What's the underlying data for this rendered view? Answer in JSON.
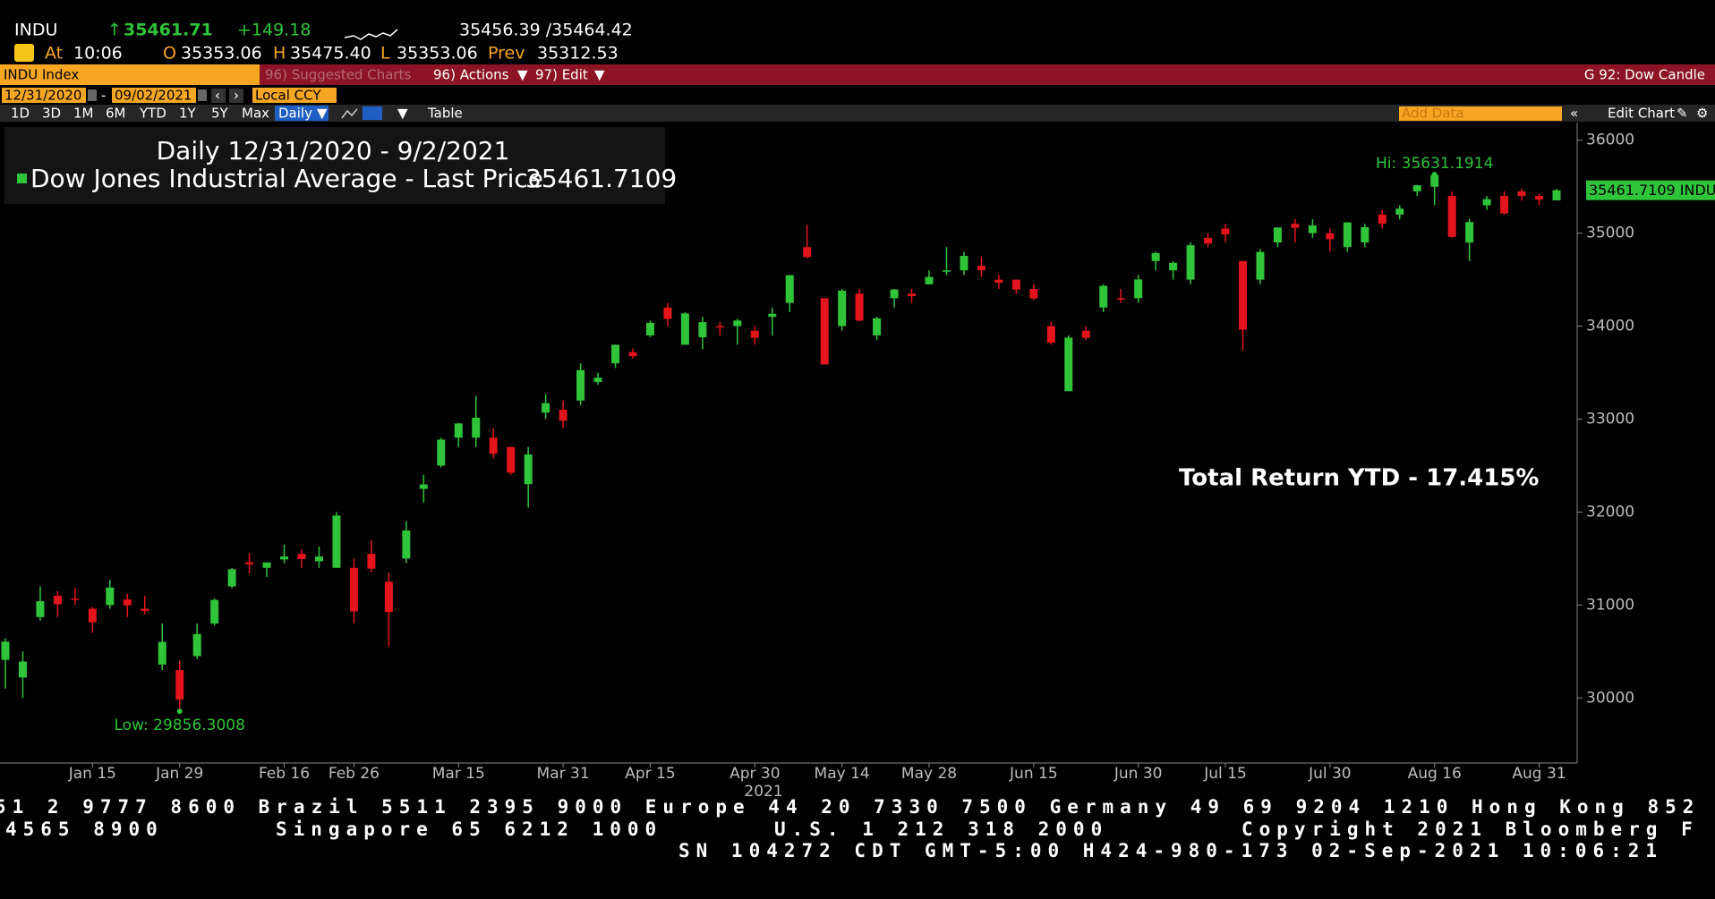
{
  "header": {
    "ticker": "INDU",
    "last": "35461.71",
    "change": "+149.18",
    "bid_ask": "35456.39 /35464.42",
    "at_label": "At",
    "time": "10:06",
    "open_label": "O",
    "open": "35353.06",
    "high_label": "H",
    "high": "35475.40",
    "low_label": "L",
    "low": "35353.06",
    "prev_label": "Prev",
    "prev": "35312.53"
  },
  "toolbar": {
    "security": "INDU Index",
    "suggested": "96) Suggested Charts",
    "actions": "96) Actions",
    "edit": "97) Edit",
    "function": "G 92: Dow Candle",
    "start_date": "12/31/2020",
    "end_date": "09/02/2021",
    "currency": "Local CCY",
    "ranges": [
      "1D",
      "3D",
      "1M",
      "6M",
      "YTD",
      "1Y",
      "5Y",
      "Max"
    ],
    "period": "Daily",
    "table": "Table",
    "add_data": "Add Data",
    "edit_chart": "Edit Chart"
  },
  "chart_data": {
    "type": "candlestick",
    "up_color": "#2fc43a",
    "down_color": "#e3141c",
    "legend": {
      "title": "Daily 12/31/2020 - 9/2/2021",
      "series_name": "Dow Jones Industrial Average - Last Price",
      "last_value": 35461.7109
    },
    "high_label": "Hi: 35631.1914",
    "low_label": "Low: 29856.3008",
    "annotation": "Total Return YTD - 17.415%",
    "last_price_label": "35461.7109 INDU",
    "year_label": "2021",
    "ylim": [
      29300,
      36190
    ],
    "yticks": [
      30000,
      31000,
      32000,
      33000,
      34000,
      35000,
      36000
    ],
    "xticks": [
      "Jan 15",
      "Jan 29",
      "Feb 16",
      "Feb 26",
      "Mar 15",
      "Mar 31",
      "Apr 15",
      "Apr 30",
      "May 14",
      "May 28",
      "Jun 15",
      "Jun 30",
      "Jul 15",
      "Jul 30",
      "Aug 16",
      "Aug 31"
    ],
    "candles": [
      {
        "date": "Dec 31",
        "open": 30410,
        "high": 30640,
        "low": 30100,
        "close": 30606
      },
      {
        "date": "Jan 5",
        "open": 30220,
        "high": 30500,
        "low": 30000,
        "close": 30392
      },
      {
        "date": "Jan 7",
        "open": 30870,
        "high": 31200,
        "low": 30830,
        "close": 31041
      },
      {
        "date": "Jan 11",
        "open": 31100,
        "high": 31150,
        "low": 30870,
        "close": 31008
      },
      {
        "date": "Jan 13",
        "open": 31070,
        "high": 31180,
        "low": 31000,
        "close": 31060
      },
      {
        "date": "Jan 15",
        "open": 30960,
        "high": 30980,
        "low": 30700,
        "close": 30814
      },
      {
        "date": "Jan 20",
        "open": 31000,
        "high": 31270,
        "low": 30960,
        "close": 31188
      },
      {
        "date": "Jan 22",
        "open": 31060,
        "high": 31120,
        "low": 30870,
        "close": 30997
      },
      {
        "date": "Jan 26",
        "open": 30960,
        "high": 31100,
        "low": 30900,
        "close": 30937
      },
      {
        "date": "Jan 28",
        "open": 30360,
        "high": 30800,
        "low": 30300,
        "close": 30603
      },
      {
        "date": "Jan 29",
        "open": 30300,
        "high": 30400,
        "low": 29856.3008,
        "close": 29983
      },
      {
        "date": "Feb 2",
        "open": 30450,
        "high": 30800,
        "low": 30420,
        "close": 30688
      },
      {
        "date": "Feb 4",
        "open": 30800,
        "high": 31070,
        "low": 30780,
        "close": 31055
      },
      {
        "date": "Feb 8",
        "open": 31200,
        "high": 31400,
        "low": 31180,
        "close": 31385
      },
      {
        "date": "Feb 10",
        "open": 31460,
        "high": 31560,
        "low": 31340,
        "close": 31437
      },
      {
        "date": "Feb 12",
        "open": 31400,
        "high": 31460,
        "low": 31300,
        "close": 31458
      },
      {
        "date": "Feb 16",
        "open": 31490,
        "high": 31650,
        "low": 31450,
        "close": 31522
      },
      {
        "date": "Feb 18",
        "open": 31550,
        "high": 31600,
        "low": 31400,
        "close": 31494
      },
      {
        "date": "Feb 22",
        "open": 31470,
        "high": 31630,
        "low": 31400,
        "close": 31522
      },
      {
        "date": "Feb 24",
        "open": 31400,
        "high": 32000,
        "low": 31400,
        "close": 31962
      },
      {
        "date": "Feb 26",
        "open": 31400,
        "high": 31500,
        "low": 30800,
        "close": 30932
      },
      {
        "date": "Mar 2",
        "open": 31550,
        "high": 31700,
        "low": 31350,
        "close": 31391
      },
      {
        "date": "Mar 4",
        "open": 31250,
        "high": 31350,
        "low": 30550,
        "close": 30924
      },
      {
        "date": "Mar 8",
        "open": 31500,
        "high": 31900,
        "low": 31450,
        "close": 31802
      },
      {
        "date": "Mar 10",
        "open": 32250,
        "high": 32400,
        "low": 32100,
        "close": 32297
      },
      {
        "date": "Mar 12",
        "open": 32500,
        "high": 32800,
        "low": 32480,
        "close": 32779
      },
      {
        "date": "Mar 15",
        "open": 32800,
        "high": 32960,
        "low": 32700,
        "close": 32953
      },
      {
        "date": "Mar 17",
        "open": 32800,
        "high": 33250,
        "low": 32700,
        "close": 33015
      },
      {
        "date": "Mar 19",
        "open": 32800,
        "high": 32900,
        "low": 32580,
        "close": 32628
      },
      {
        "date": "Mar 23",
        "open": 32700,
        "high": 32700,
        "low": 32400,
        "close": 32423
      },
      {
        "date": "Mar 25",
        "open": 32300,
        "high": 32700,
        "low": 32050,
        "close": 32620
      },
      {
        "date": "Mar 29",
        "open": 33070,
        "high": 33270,
        "low": 33000,
        "close": 33171
      },
      {
        "date": "Mar 31",
        "open": 33100,
        "high": 33200,
        "low": 32900,
        "close": 32982
      },
      {
        "date": "Apr 5",
        "open": 33200,
        "high": 33600,
        "low": 33150,
        "close": 33527
      },
      {
        "date": "Apr 7",
        "open": 33400,
        "high": 33500,
        "low": 33370,
        "close": 33446
      },
      {
        "date": "Apr 9",
        "open": 33600,
        "high": 33800,
        "low": 33550,
        "close": 33800
      },
      {
        "date": "Apr 13",
        "open": 33720,
        "high": 33760,
        "low": 33650,
        "close": 33677
      },
      {
        "date": "Apr 15",
        "open": 33900,
        "high": 34060,
        "low": 33880,
        "close": 34036
      },
      {
        "date": "Apr 19",
        "open": 34200,
        "high": 34250,
        "low": 34000,
        "close": 34077
      },
      {
        "date": "Apr 21",
        "open": 33800,
        "high": 34150,
        "low": 33800,
        "close": 34137
      },
      {
        "date": "Apr 23",
        "open": 33880,
        "high": 34100,
        "low": 33750,
        "close": 34043
      },
      {
        "date": "Apr 27",
        "open": 34000,
        "high": 34050,
        "low": 33900,
        "close": 33985
      },
      {
        "date": "Apr 29",
        "open": 34000,
        "high": 34080,
        "low": 33800,
        "close": 34060
      },
      {
        "date": "Apr 30",
        "open": 33950,
        "high": 34000,
        "low": 33800,
        "close": 33875
      },
      {
        "date": "May 4",
        "open": 34100,
        "high": 34200,
        "low": 33900,
        "close": 34133
      },
      {
        "date": "May 6",
        "open": 34250,
        "high": 34550,
        "low": 34150,
        "close": 34548
      },
      {
        "date": "May 10",
        "open": 34850,
        "high": 35091,
        "low": 34730,
        "close": 34743
      },
      {
        "date": "May 12",
        "open": 34300,
        "high": 34300,
        "low": 33600,
        "close": 33587
      },
      {
        "date": "May 14",
        "open": 34000,
        "high": 34400,
        "low": 33950,
        "close": 34382
      },
      {
        "date": "May 18",
        "open": 34350,
        "high": 34400,
        "low": 34050,
        "close": 34060
      },
      {
        "date": "May 20",
        "open": 33900,
        "high": 34100,
        "low": 33850,
        "close": 34084
      },
      {
        "date": "May 24",
        "open": 34300,
        "high": 34400,
        "low": 34200,
        "close": 34394
      },
      {
        "date": "May 26",
        "open": 34350,
        "high": 34400,
        "low": 34250,
        "close": 34323
      },
      {
        "date": "May 28",
        "open": 34450,
        "high": 34600,
        "low": 34450,
        "close": 34529
      },
      {
        "date": "Jun 2",
        "open": 34600,
        "high": 34850,
        "low": 34550,
        "close": 34600
      },
      {
        "date": "Jun 4",
        "open": 34600,
        "high": 34800,
        "low": 34550,
        "close": 34756
      },
      {
        "date": "Jun 8",
        "open": 34650,
        "high": 34750,
        "low": 34530,
        "close": 34600
      },
      {
        "date": "Jun 10",
        "open": 34500,
        "high": 34550,
        "low": 34400,
        "close": 34466
      },
      {
        "date": "Jun 14",
        "open": 34500,
        "high": 34500,
        "low": 34350,
        "close": 34393
      },
      {
        "date": "Jun 15",
        "open": 34400,
        "high": 34450,
        "low": 34280,
        "close": 34299
      },
      {
        "date": "Jun 17",
        "open": 34000,
        "high": 34050,
        "low": 33800,
        "close": 33823
      },
      {
        "date": "Jun 21",
        "open": 33300,
        "high": 33900,
        "low": 33300,
        "close": 33876
      },
      {
        "date": "Jun 23",
        "open": 33950,
        "high": 34000,
        "low": 33850,
        "close": 33874
      },
      {
        "date": "Jun 25",
        "open": 34200,
        "high": 34450,
        "low": 34150,
        "close": 34433
      },
      {
        "date": "Jun 29",
        "open": 34300,
        "high": 34400,
        "low": 34250,
        "close": 34292
      },
      {
        "date": "Jun 30",
        "open": 34300,
        "high": 34550,
        "low": 34250,
        "close": 34502
      },
      {
        "date": "Jul 2",
        "open": 34700,
        "high": 34800,
        "low": 34600,
        "close": 34786
      },
      {
        "date": "Jul 7",
        "open": 34600,
        "high": 34700,
        "low": 34500,
        "close": 34681
      },
      {
        "date": "Jul 9",
        "open": 34500,
        "high": 34900,
        "low": 34450,
        "close": 34870
      },
      {
        "date": "Jul 13",
        "open": 34950,
        "high": 35000,
        "low": 34850,
        "close": 34888
      },
      {
        "date": "Jul 15",
        "open": 35050,
        "high": 35100,
        "low": 34900,
        "close": 34987
      },
      {
        "date": "Jul 19",
        "open": 34700,
        "high": 34700,
        "low": 33740,
        "close": 33962
      },
      {
        "date": "Jul 21",
        "open": 34500,
        "high": 34830,
        "low": 34450,
        "close": 34798
      },
      {
        "date": "Jul 23",
        "open": 34900,
        "high": 35060,
        "low": 34850,
        "close": 35061
      },
      {
        "date": "Jul 27",
        "open": 35100,
        "high": 35150,
        "low": 34900,
        "close": 35058
      },
      {
        "date": "Jul 29",
        "open": 35000,
        "high": 35150,
        "low": 34950,
        "close": 35084
      },
      {
        "date": "Jul 30",
        "open": 35000,
        "high": 35050,
        "low": 34800,
        "close": 34935
      },
      {
        "date": "Aug 3",
        "open": 34850,
        "high": 35120,
        "low": 34800,
        "close": 35116
      },
      {
        "date": "Aug 5",
        "open": 34900,
        "high": 35100,
        "low": 34850,
        "close": 35064
      },
      {
        "date": "Aug 9",
        "open": 35200,
        "high": 35250,
        "low": 35050,
        "close": 35101
      },
      {
        "date": "Aug 11",
        "open": 35200,
        "high": 35300,
        "low": 35150,
        "close": 35264
      },
      {
        "date": "Aug 13",
        "open": 35450,
        "high": 35520,
        "low": 35400,
        "close": 35515
      },
      {
        "date": "Aug 16",
        "open": 35500,
        "high": 35631.1914,
        "low": 35300,
        "close": 35625
      },
      {
        "date": "Aug 18",
        "open": 35400,
        "high": 35450,
        "low": 34950,
        "close": 34960
      },
      {
        "date": "Aug 20",
        "open": 34900,
        "high": 35150,
        "low": 34700,
        "close": 35120
      },
      {
        "date": "Aug 24",
        "open": 35300,
        "high": 35400,
        "low": 35250,
        "close": 35366
      },
      {
        "date": "Aug 26",
        "open": 35400,
        "high": 35450,
        "low": 35200,
        "close": 35213
      },
      {
        "date": "Aug 30",
        "open": 35450,
        "high": 35480,
        "low": 35350,
        "close": 35400
      },
      {
        "date": "Aug 31",
        "open": 35400,
        "high": 35420,
        "low": 35300,
        "close": 35361
      },
      {
        "date": "Sep 2",
        "open": 35353.06,
        "high": 35475.4,
        "low": 35353.06,
        "close": 35461.7109
      }
    ]
  },
  "footer": {
    "line1": "51 2 9777 8600 Brazil 5511 2395 9000 Europe 44 20 7330 7500 Germany 49 69 9204 1210 Hong Kong 852",
    "line2": [
      "4565 8900",
      "Singapore 65 6212 1000",
      "U.S. 1 212 318 2000",
      "Copyright 2021 Bloomberg F"
    ],
    "line3": "SN 104272 CDT  GMT-5:00 H424-980-173 02-Sep-2021 10:06:21"
  }
}
